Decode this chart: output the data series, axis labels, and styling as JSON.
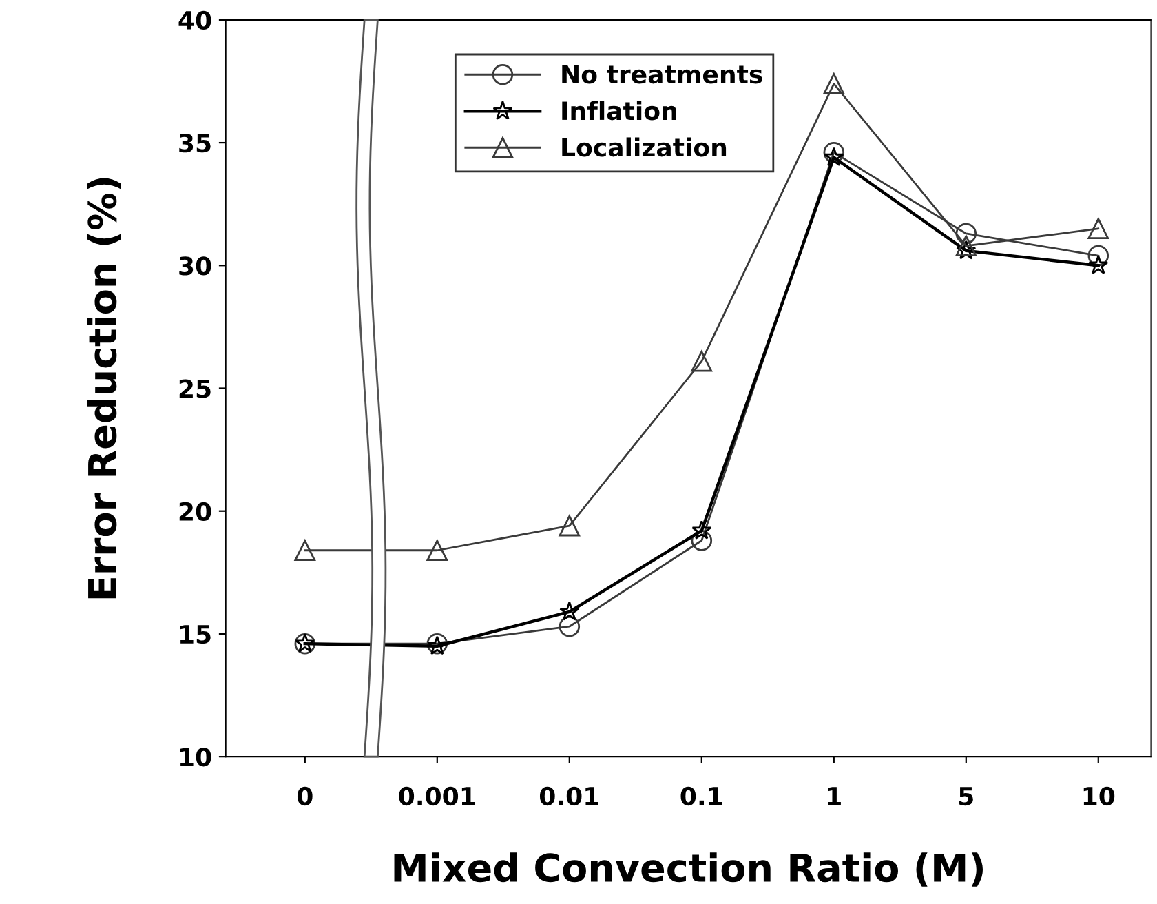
{
  "chart_data": {
    "type": "line",
    "xlabel": "Mixed Convection Ratio (M)",
    "ylabel": "Error Reduction (%)",
    "categories": [
      "0",
      "0.001",
      "0.01",
      "0.1",
      "1",
      "5",
      "10"
    ],
    "series": [
      {
        "name": "No treatments",
        "color": "#3a3a3a",
        "marker": "circle",
        "values": [
          14.6,
          14.6,
          15.3,
          18.8,
          34.6,
          31.3,
          30.4
        ]
      },
      {
        "name": "Inflation",
        "color": "#000000",
        "marker": "star",
        "values": [
          14.6,
          14.5,
          15.9,
          19.2,
          34.4,
          30.6,
          30.0
        ]
      },
      {
        "name": "Localization",
        "color": "#3a3a3a",
        "marker": "triangle",
        "values": [
          18.4,
          18.4,
          19.4,
          26.1,
          37.4,
          30.8,
          31.5
        ]
      }
    ],
    "ylim": [
      10,
      40
    ],
    "yticks": [
      10,
      15,
      20,
      25,
      30,
      35,
      40
    ],
    "grid": false,
    "legend": "top",
    "line_style": "solid"
  }
}
